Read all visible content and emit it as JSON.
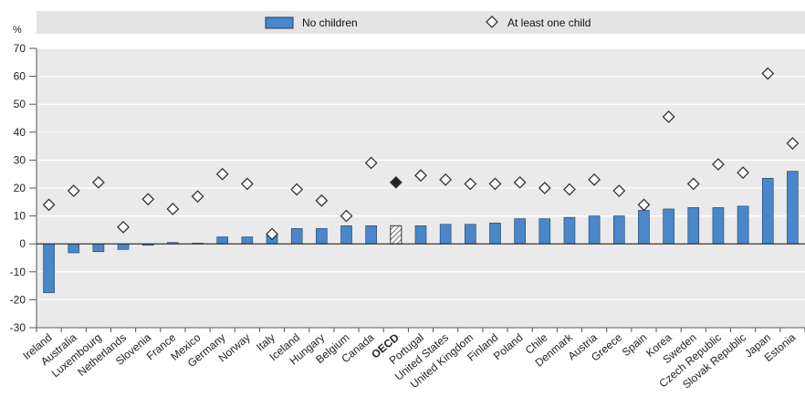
{
  "chart_data": {
    "type": "bar",
    "ylabel": "%",
    "ylim": [
      -30,
      70
    ],
    "yticks": [
      -30,
      -20,
      -10,
      0,
      10,
      20,
      30,
      40,
      50,
      60,
      70
    ],
    "grid": true,
    "legend_position": "top",
    "categories": [
      "Ireland",
      "Australia",
      "Luxembourg",
      "Netherlands",
      "Slovenia",
      "France",
      "Mexico",
      "Germany",
      "Norway",
      "Italy",
      "Iceland",
      "Hungary",
      "Belgium",
      "Canada",
      "OECD",
      "Portugal",
      "United States",
      "United Kingdom",
      "Finland",
      "Poland",
      "Chile",
      "Denmark",
      "Austria",
      "Greece",
      "Spain",
      "Korea",
      "Sweden",
      "Czech Republic",
      "Slovak Republic",
      "Japan",
      "Estonia"
    ],
    "highlight_category": "OECD",
    "series": [
      {
        "name": "No children",
        "kind": "bar",
        "color": "#4a86c8",
        "values": [
          -17.5,
          -3.2,
          -2.8,
          -2.0,
          -0.5,
          0.5,
          0.0,
          2.5,
          2.5,
          3.0,
          5.5,
          5.5,
          6.5,
          6.5,
          6.5,
          6.5,
          7.0,
          7.0,
          7.5,
          9.0,
          9.0,
          9.5,
          10.0,
          10.0,
          12.0,
          12.5,
          13.0,
          13.0,
          13.5,
          23.5,
          26.0
        ]
      },
      {
        "name": "At least one child",
        "kind": "marker",
        "marker": "diamond",
        "values": [
          14.0,
          19.0,
          22.0,
          6.0,
          16.0,
          12.5,
          17.0,
          25.0,
          21.5,
          3.5,
          19.5,
          15.5,
          10.0,
          29.0,
          22.0,
          24.5,
          23.0,
          21.5,
          21.5,
          22.0,
          20.0,
          19.5,
          23.0,
          19.0,
          14.0,
          45.5,
          21.5,
          28.5,
          25.5,
          61.0,
          36.0
        ]
      }
    ]
  },
  "colors": {
    "bar": "#4a86c8",
    "bar_stroke": "#1f3f66",
    "plot_bg": "#eaeaea",
    "legend_bg": "#e4e4e4",
    "grid": "#ffffff",
    "highlight_marker": "#222222"
  }
}
